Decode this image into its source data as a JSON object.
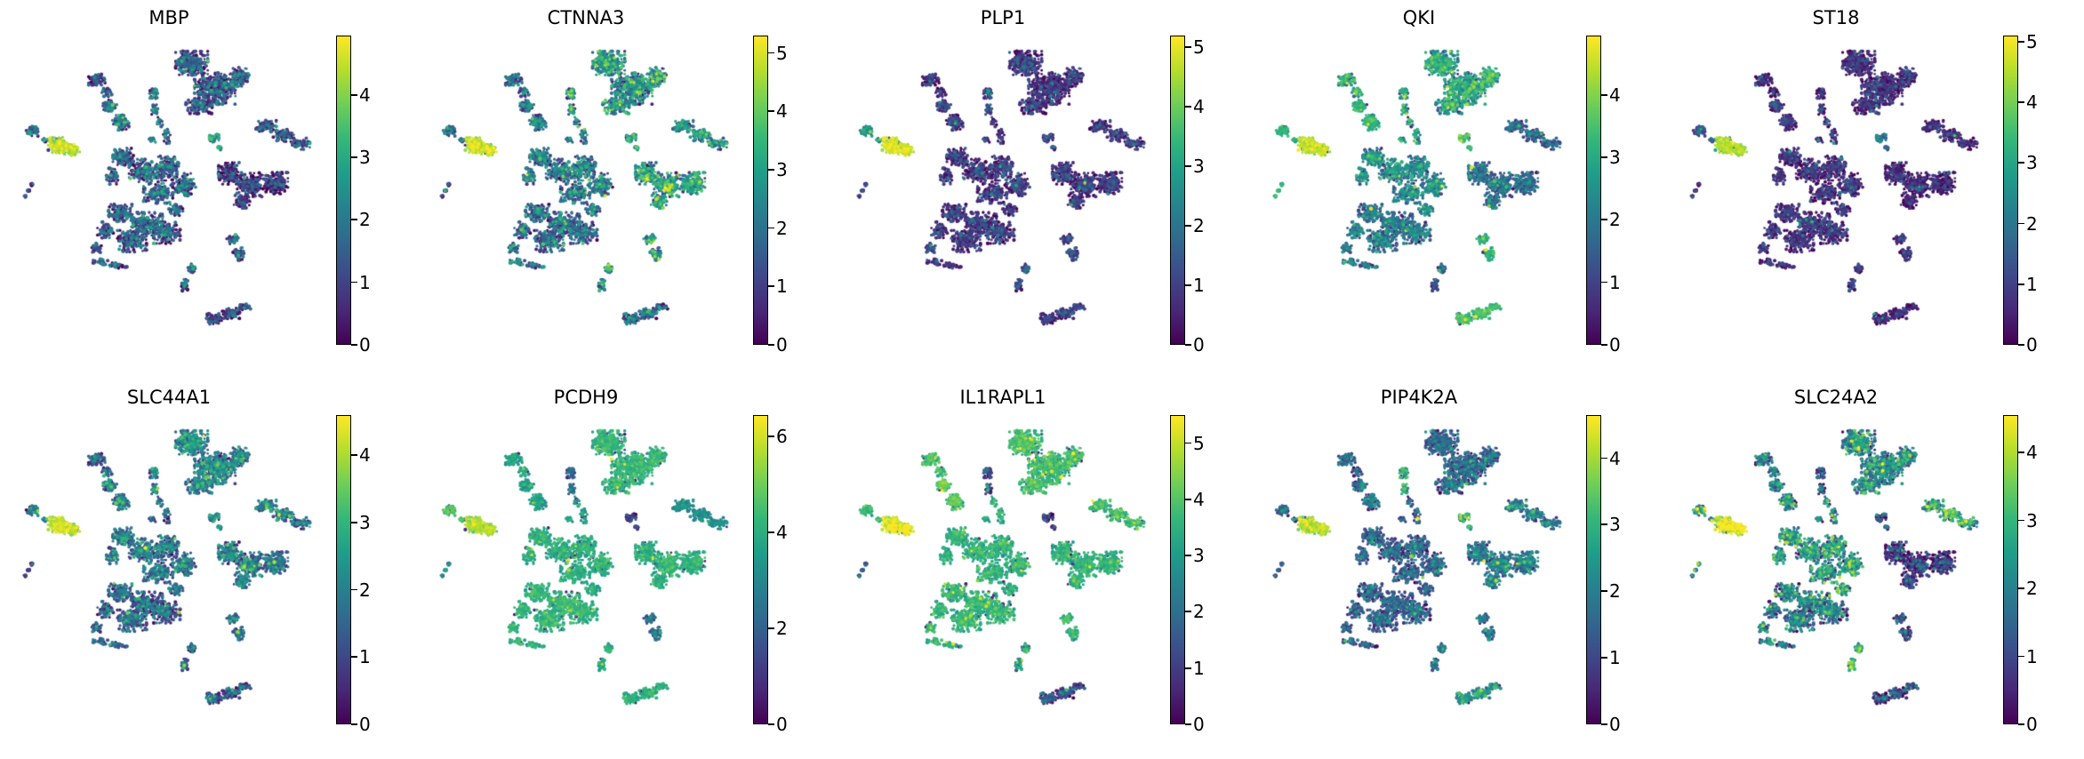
{
  "figure": {
    "background": "#ffffff",
    "text_color": "#000000",
    "description": "Grid of UMAP feature plots, one per gene, colored by expression (viridis)"
  },
  "chart_data": {
    "type": "scatter",
    "subtype": "umap-feature-plot-grid",
    "grid": {
      "rows": 2,
      "cols": 5
    },
    "colormap": "viridis",
    "colormap_stops": [
      "#440154",
      "#482878",
      "#3e4989",
      "#31688e",
      "#26828e",
      "#1f9e89",
      "#35b779",
      "#6ece58",
      "#b5de2b",
      "#fde725"
    ],
    "legend_position": "right-colorbar-per-panel",
    "axes": "hidden",
    "cluster_names": [
      "top-large",
      "top-left-small",
      "upper-left-mid",
      "vertical-blob",
      "right-top-band",
      "left-bright",
      "left-companion",
      "dash",
      "central-mass",
      "right-large",
      "bottom-left-mass",
      "small-right-mid",
      "bottom-center-small",
      "bottom-band",
      "mid-right-speck",
      "connecting-trails"
    ],
    "clusters": [
      {
        "name": "top-large",
        "blobs": [
          [
            0.575,
            0.06,
            0.055,
            0.042,
            280
          ],
          [
            0.655,
            0.15,
            0.07,
            0.055,
            360
          ],
          [
            0.74,
            0.11,
            0.032,
            0.035,
            110
          ],
          [
            0.6,
            0.21,
            0.045,
            0.028,
            120
          ]
        ]
      },
      {
        "name": "top-left-small",
        "blobs": [
          [
            0.25,
            0.115,
            0.028,
            0.022,
            60
          ],
          [
            0.285,
            0.16,
            0.018,
            0.018,
            30
          ]
        ]
      },
      {
        "name": "upper-left-mid",
        "blobs": [
          [
            0.295,
            0.21,
            0.025,
            0.02,
            65
          ],
          [
            0.33,
            0.27,
            0.03,
            0.026,
            100
          ]
        ]
      },
      {
        "name": "vertical-blob",
        "blobs": [
          [
            0.445,
            0.165,
            0.014,
            0.02,
            40
          ],
          [
            0.45,
            0.225,
            0.012,
            0.018,
            30
          ]
        ]
      },
      {
        "name": "right-top-band",
        "blobs": [
          [
            0.83,
            0.285,
            0.035,
            0.022,
            90
          ],
          [
            0.89,
            0.315,
            0.035,
            0.022,
            90
          ],
          [
            0.95,
            0.345,
            0.03,
            0.02,
            60
          ]
        ]
      },
      {
        "name": "left-bright",
        "blobs": [
          [
            0.115,
            0.35,
            0.032,
            0.026,
            140
          ],
          [
            0.165,
            0.365,
            0.026,
            0.02,
            80
          ]
        ]
      },
      {
        "name": "left-companion",
        "blobs": [
          [
            0.03,
            0.3,
            0.022,
            0.018,
            40
          ],
          [
            0.07,
            0.33,
            0.012,
            0.008,
            10
          ]
        ]
      },
      {
        "name": "dash",
        "blobs": [
          [
            0.005,
            0.53,
            0.005,
            0.005,
            8
          ],
          [
            0.016,
            0.51,
            0.005,
            0.005,
            9
          ],
          [
            0.027,
            0.49,
            0.005,
            0.005,
            8
          ]
        ]
      },
      {
        "name": "central-mass",
        "blobs": [
          [
            0.34,
            0.39,
            0.035,
            0.03,
            120
          ],
          [
            0.41,
            0.44,
            0.05,
            0.04,
            170
          ],
          [
            0.49,
            0.43,
            0.04,
            0.045,
            150
          ],
          [
            0.55,
            0.49,
            0.04,
            0.04,
            140
          ],
          [
            0.46,
            0.52,
            0.05,
            0.035,
            140
          ],
          [
            0.305,
            0.46,
            0.022,
            0.028,
            55
          ],
          [
            0.52,
            0.58,
            0.025,
            0.02,
            45
          ]
        ]
      },
      {
        "name": "right-large",
        "blobs": [
          [
            0.705,
            0.45,
            0.038,
            0.038,
            150
          ],
          [
            0.78,
            0.49,
            0.05,
            0.042,
            210
          ],
          [
            0.865,
            0.485,
            0.04,
            0.038,
            170
          ],
          [
            0.75,
            0.55,
            0.03,
            0.022,
            70
          ]
        ]
      },
      {
        "name": "bottom-left-mass",
        "blobs": [
          [
            0.33,
            0.59,
            0.04,
            0.032,
            130
          ],
          [
            0.42,
            0.63,
            0.055,
            0.042,
            200
          ],
          [
            0.49,
            0.66,
            0.045,
            0.038,
            160
          ],
          [
            0.37,
            0.69,
            0.05,
            0.038,
            160
          ],
          [
            0.28,
            0.65,
            0.028,
            0.028,
            60
          ],
          [
            0.245,
            0.715,
            0.02,
            0.018,
            35
          ],
          [
            0.265,
            0.765,
            0.028,
            0.012,
            35
          ],
          [
            0.325,
            0.775,
            0.03,
            0.01,
            30
          ]
        ]
      },
      {
        "name": "small-right-mid",
        "blobs": [
          [
            0.715,
            0.685,
            0.02,
            0.018,
            40
          ],
          [
            0.735,
            0.735,
            0.018,
            0.022,
            50
          ]
        ]
      },
      {
        "name": "bottom-center-small",
        "blobs": [
          [
            0.575,
            0.79,
            0.016,
            0.02,
            35
          ],
          [
            0.555,
            0.845,
            0.016,
            0.02,
            30
          ]
        ]
      },
      {
        "name": "bottom-band",
        "blobs": [
          [
            0.655,
            0.965,
            0.028,
            0.018,
            70
          ],
          [
            0.71,
            0.945,
            0.03,
            0.018,
            80
          ],
          [
            0.755,
            0.925,
            0.022,
            0.014,
            30
          ]
        ]
      },
      {
        "name": "mid-right-speck",
        "blobs": [
          [
            0.65,
            0.325,
            0.018,
            0.016,
            35
          ],
          [
            0.67,
            0.36,
            0.01,
            0.009,
            12
          ]
        ]
      },
      {
        "name": "connecting-trails",
        "blobs": [
          [
            0.49,
            0.315,
            0.012,
            0.028,
            22
          ],
          [
            0.465,
            0.27,
            0.01,
            0.02,
            14
          ],
          [
            0.44,
            0.33,
            0.015,
            0.012,
            10
          ]
        ]
      }
    ],
    "panels": [
      {
        "gene": "MBP",
        "vmax": 4.95,
        "ticks": [
          0,
          1,
          2,
          3,
          4
        ],
        "noise": 0.8,
        "expression": [
          1.0,
          0.8,
          1.5,
          1.5,
          0.7,
          4.2,
          1.5,
          0.6,
          1.2,
          0.4,
          1.1,
          1.3,
          1.0,
          0.6,
          2.3,
          1.4
        ]
      },
      {
        "gene": "CTNNA3",
        "vmax": 5.3,
        "ticks": [
          0,
          1,
          2,
          3,
          4,
          5
        ],
        "noise": 0.9,
        "expression": [
          2.2,
          1.2,
          1.5,
          2.5,
          2.2,
          4.6,
          1.5,
          0.6,
          1.8,
          2.5,
          1.4,
          2.2,
          2.3,
          1.4,
          2.6,
          1.8
        ]
      },
      {
        "gene": "PLP1",
        "vmax": 5.2,
        "ticks": [
          0,
          1,
          2,
          3,
          4,
          5
        ],
        "noise": 0.55,
        "expression": [
          0.5,
          0.5,
          0.6,
          1.0,
          0.5,
          4.7,
          2.5,
          0.8,
          0.6,
          0.6,
          0.6,
          0.8,
          0.9,
          0.6,
          0.7,
          0.6
        ]
      },
      {
        "gene": "QKI",
        "vmax": 4.95,
        "ticks": [
          0,
          1,
          2,
          3,
          4
        ],
        "noise": 0.6,
        "expression": [
          2.7,
          2.9,
          3.0,
          2.5,
          1.3,
          4.2,
          3.0,
          3.0,
          2.1,
          1.4,
          1.7,
          3.0,
          1.0,
          3.3,
          3.2,
          2.6
        ]
      },
      {
        "gene": "ST18",
        "vmax": 5.1,
        "ticks": [
          0,
          1,
          2,
          3,
          4,
          5
        ],
        "noise": 0.5,
        "expression": [
          0.4,
          0.3,
          0.5,
          0.5,
          0.4,
          4.3,
          1.2,
          0.4,
          0.5,
          0.3,
          0.5,
          0.5,
          0.5,
          0.4,
          1.5,
          0.5
        ]
      },
      {
        "gene": "SLC44A1",
        "vmax": 4.6,
        "ticks": [
          0,
          1,
          2,
          3,
          4
        ],
        "noise": 0.7,
        "expression": [
          1.8,
          1.2,
          1.6,
          1.8,
          1.5,
          4.0,
          1.5,
          0.8,
          1.5,
          1.6,
          1.2,
          1.5,
          1.2,
          0.9,
          2.0,
          1.5
        ]
      },
      {
        "gene": "PCDH9",
        "vmax": 6.45,
        "ticks": [
          0,
          2,
          4,
          6
        ],
        "noise": 0.8,
        "expression": [
          4.0,
          3.6,
          3.4,
          2.0,
          3.0,
          5.4,
          4.4,
          2.8,
          3.8,
          3.9,
          4.0,
          2.0,
          3.8,
          3.8,
          0.8,
          3.6
        ]
      },
      {
        "gene": "IL1RAPL1",
        "vmax": 5.5,
        "ticks": [
          0,
          1,
          2,
          3,
          4,
          5
        ],
        "noise": 0.8,
        "expression": [
          3.6,
          3.6,
          3.8,
          1.0,
          3.6,
          5.0,
          3.6,
          1.2,
          3.3,
          3.3,
          3.4,
          3.4,
          2.8,
          0.9,
          0.5,
          3.3
        ]
      },
      {
        "gene": "PIP4K2A",
        "vmax": 4.65,
        "ticks": [
          0,
          1,
          2,
          3,
          4
        ],
        "noise": 0.6,
        "expression": [
          1.3,
          1.2,
          1.4,
          2.4,
          1.6,
          3.9,
          1.3,
          0.9,
          1.2,
          1.6,
          1.2,
          1.5,
          1.2,
          2.2,
          2.9,
          1.3
        ]
      },
      {
        "gene": "SLC24A2",
        "vmax": 4.55,
        "ticks": [
          0,
          1,
          2,
          3,
          4
        ],
        "noise": 0.8,
        "expression": [
          1.8,
          1.7,
          1.8,
          0.9,
          2.4,
          4.2,
          2.4,
          1.8,
          2.1,
          0.4,
          1.5,
          0.6,
          2.6,
          0.6,
          0.6,
          1.9
        ]
      }
    ]
  }
}
